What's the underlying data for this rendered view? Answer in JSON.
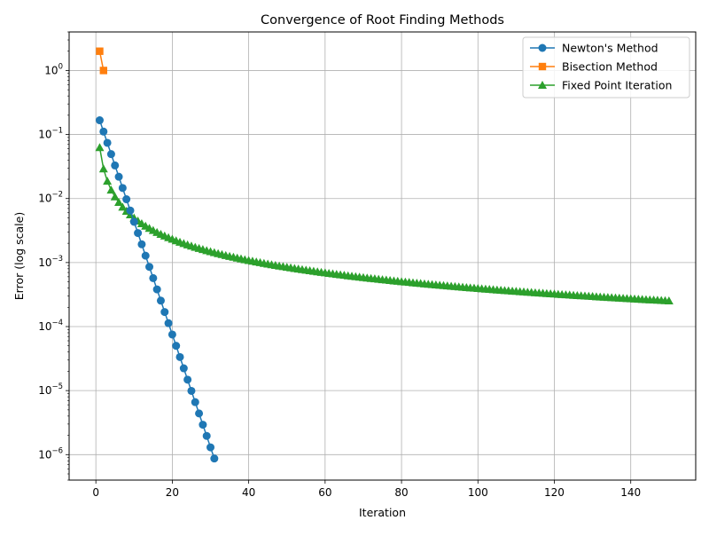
{
  "chart_data": {
    "type": "line",
    "title": "Convergence of Root Finding Methods",
    "xlabel": "Iteration",
    "ylabel": "Error (log scale)",
    "yscale": "log",
    "xlim": [
      -7,
      157
    ],
    "ylim": [
      4e-07,
      4
    ],
    "xticks": [
      0,
      20,
      40,
      60,
      80,
      100,
      120,
      140
    ],
    "xtick_labels": [
      "0",
      "20",
      "40",
      "60",
      "80",
      "100",
      "120",
      "140"
    ],
    "yticks": [
      1e-06,
      1e-05,
      0.0001,
      0.001,
      0.01,
      0.1,
      1
    ],
    "ytick_labels": [
      {
        "base": "10",
        "exp": "−6"
      },
      {
        "base": "10",
        "exp": "−5"
      },
      {
        "base": "10",
        "exp": "−4"
      },
      {
        "base": "10",
        "exp": "−3"
      },
      {
        "base": "10",
        "exp": "−2"
      },
      {
        "base": "10",
        "exp": "−1"
      },
      {
        "base": "10",
        "exp": "0"
      }
    ],
    "grid": true,
    "legend_position": "top-right",
    "series": [
      {
        "name": "Newton's Method",
        "color": "#1f77b4",
        "marker": "circle",
        "x": [
          1,
          2,
          3,
          4,
          5,
          6,
          7,
          8,
          9,
          10,
          11,
          12,
          13,
          14,
          15,
          16,
          17,
          18,
          19,
          20,
          21,
          22,
          23,
          24,
          25,
          26,
          27,
          28,
          29,
          30,
          31
        ],
        "y": [
          0.167,
          0.111,
          0.0741,
          0.0494,
          0.0329,
          0.0219,
          0.0146,
          0.00975,
          0.0065,
          0.00433,
          0.00289,
          0.00193,
          0.00128,
          0.000856,
          0.000571,
          0.000381,
          0.000254,
          0.000169,
          0.000113,
          7.51e-05,
          5.01e-05,
          3.34e-05,
          2.23e-05,
          1.48e-05,
          9.9e-06,
          6.6e-06,
          4.4e-06,
          2.93e-06,
          1.96e-06,
          1.3e-06,
          8.7e-07
        ]
      },
      {
        "name": "Bisection Method",
        "color": "#ff7f0e",
        "marker": "square",
        "x": [
          1,
          2
        ],
        "y": [
          2,
          1
        ]
      },
      {
        "name": "Fixed Point Iteration",
        "color": "#2ca02c",
        "marker": "triangle",
        "x_range": [
          1,
          150
        ],
        "y_model": "0.0625 * x^(-1.1)"
      }
    ]
  }
}
